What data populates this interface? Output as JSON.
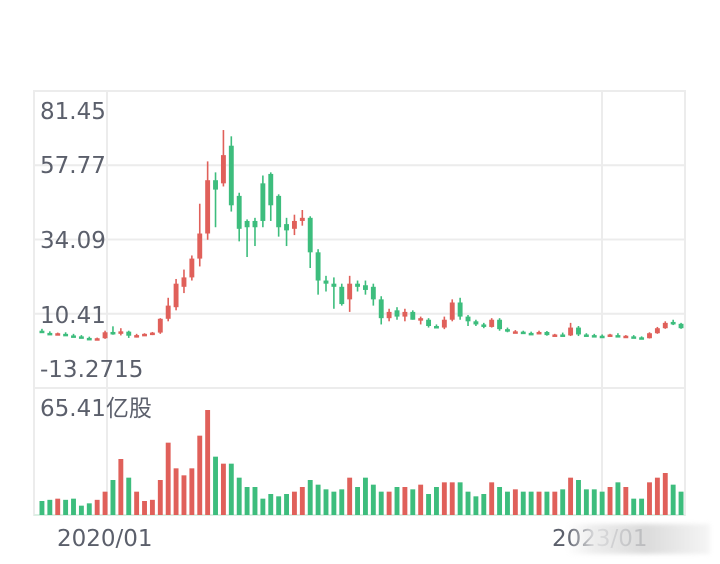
{
  "chart_data": {
    "type": "candlestick",
    "title": "",
    "price_axis": {
      "tick_labels": [
        "81.45",
        "57.77",
        "34.09",
        "10.41",
        "-13.2715"
      ],
      "tick_values": [
        81.45,
        57.77,
        34.09,
        10.41,
        -13.2715
      ],
      "ylim": [
        -13.2715,
        81.45
      ]
    },
    "volume_axis": {
      "max_label": "65.41亿股",
      "max_value": 65.41,
      "unit": "亿股"
    },
    "x_axis": {
      "tick_labels": [
        "2020/01",
        "2023/01"
      ],
      "note": "second label partially obscured by watermark"
    },
    "colors": {
      "up": "#e0605a",
      "down": "#3dbd7d",
      "grid": "#ececec",
      "text": "#5b5f6b"
    },
    "grid": true,
    "candles": [
      {
        "o": 5.0,
        "h": 5.6,
        "l": 4.4,
        "c": 4.6,
        "v": 6
      },
      {
        "o": 4.3,
        "h": 4.8,
        "l": 3.8,
        "c": 4.0,
        "v": 6.5
      },
      {
        "o": 3.9,
        "h": 4.4,
        "l": 3.5,
        "c": 4.2,
        "v": 7
      },
      {
        "o": 4.0,
        "h": 4.5,
        "l": 3.4,
        "c": 3.6,
        "v": 6.5
      },
      {
        "o": 3.5,
        "h": 4.0,
        "l": 3.0,
        "c": 3.3,
        "v": 7
      },
      {
        "o": 3.2,
        "h": 3.6,
        "l": 2.5,
        "c": 2.8,
        "v": 4
      },
      {
        "o": 2.7,
        "h": 3.1,
        "l": 2.2,
        "c": 2.3,
        "v": 5
      },
      {
        "o": 2.2,
        "h": 2.8,
        "l": 1.9,
        "c": 2.6,
        "v": 6.5
      },
      {
        "o": 2.6,
        "h": 5.0,
        "l": 2.4,
        "c": 4.5,
        "v": 10
      },
      {
        "o": 4.6,
        "h": 6.4,
        "l": 3.7,
        "c": 4.4,
        "v": 15
      },
      {
        "o": 4.4,
        "h": 5.8,
        "l": 3.5,
        "c": 4.8,
        "v": 24
      },
      {
        "o": 4.7,
        "h": 5.0,
        "l": 2.7,
        "c": 3.4,
        "v": 16
      },
      {
        "o": 3.3,
        "h": 4.0,
        "l": 2.8,
        "c": 3.6,
        "v": 10
      },
      {
        "o": 3.6,
        "h": 4.2,
        "l": 3.3,
        "c": 4.0,
        "v": 6
      },
      {
        "o": 3.9,
        "h": 4.6,
        "l": 3.6,
        "c": 4.4,
        "v": 6.5
      },
      {
        "o": 4.4,
        "h": 9.0,
        "l": 4.0,
        "c": 8.8,
        "v": 15
      },
      {
        "o": 8.8,
        "h": 15.5,
        "l": 8.0,
        "c": 13.0,
        "v": 31
      },
      {
        "o": 12.5,
        "h": 21.5,
        "l": 11.5,
        "c": 20.0,
        "v": 20
      },
      {
        "o": 19.0,
        "h": 24.5,
        "l": 17.0,
        "c": 22.0,
        "v": 17
      },
      {
        "o": 22.0,
        "h": 29.0,
        "l": 21.0,
        "c": 28.0,
        "v": 20
      },
      {
        "o": 28.0,
        "h": 45.5,
        "l": 25.5,
        "c": 36.0,
        "v": 34
      },
      {
        "o": 36.0,
        "h": 59.0,
        "l": 34.0,
        "c": 53.0,
        "v": 45
      },
      {
        "o": 53.0,
        "h": 55.5,
        "l": 38.0,
        "c": 50.0,
        "v": 25
      },
      {
        "o": 52.0,
        "h": 69.0,
        "l": 51.0,
        "c": 61.0,
        "v": 22
      },
      {
        "o": 64.0,
        "h": 67.0,
        "l": 43.0,
        "c": 45.0,
        "v": 22
      },
      {
        "o": 48.0,
        "h": 49.0,
        "l": 33.5,
        "c": 37.5,
        "v": 16
      },
      {
        "o": 40.0,
        "h": 40.5,
        "l": 28.5,
        "c": 38.0,
        "v": 12
      },
      {
        "o": 40.0,
        "h": 41.0,
        "l": 32.0,
        "c": 38.0,
        "v": 12
      },
      {
        "o": 52.0,
        "h": 54.5,
        "l": 38.0,
        "c": 40.0,
        "v": 7
      },
      {
        "o": 55.0,
        "h": 55.5,
        "l": 40.0,
        "c": 45.0,
        "v": 9
      },
      {
        "o": 48.0,
        "h": 48.5,
        "l": 35.0,
        "c": 38.0,
        "v": 8
      },
      {
        "o": 39.0,
        "h": 41.0,
        "l": 32.0,
        "c": 37.0,
        "v": 9
      },
      {
        "o": 37.5,
        "h": 42.0,
        "l": 35.5,
        "c": 40.0,
        "v": 10
      },
      {
        "o": 40.0,
        "h": 43.5,
        "l": 38.5,
        "c": 41.0,
        "v": 12
      },
      {
        "o": 41.0,
        "h": 41.5,
        "l": 25.0,
        "c": 30.0,
        "v": 15
      },
      {
        "o": 30.0,
        "h": 31.0,
        "l": 16.5,
        "c": 21.0,
        "v": 13
      },
      {
        "o": 21.0,
        "h": 22.5,
        "l": 17.5,
        "c": 20.0,
        "v": 11
      },
      {
        "o": 20.0,
        "h": 22.0,
        "l": 12.0,
        "c": 19.0,
        "v": 10
      },
      {
        "o": 19.0,
        "h": 20.0,
        "l": 13.0,
        "c": 13.5,
        "v": 11
      },
      {
        "o": 15.0,
        "h": 22.5,
        "l": 11.0,
        "c": 20.0,
        "v": 16
      },
      {
        "o": 20.0,
        "h": 21.0,
        "l": 17.5,
        "c": 19.0,
        "v": 12
      },
      {
        "o": 19.5,
        "h": 21.0,
        "l": 16.5,
        "c": 18.0,
        "v": 16
      },
      {
        "o": 19.0,
        "h": 20.0,
        "l": 13.0,
        "c": 15.0,
        "v": 13
      },
      {
        "o": 15.0,
        "h": 16.0,
        "l": 7.0,
        "c": 9.0,
        "v": 10
      },
      {
        "o": 9.0,
        "h": 12.0,
        "l": 8.0,
        "c": 11.0,
        "v": 10
      },
      {
        "o": 11.5,
        "h": 12.5,
        "l": 8.5,
        "c": 9.5,
        "v": 12
      },
      {
        "o": 9.5,
        "h": 12.0,
        "l": 8.0,
        "c": 11.0,
        "v": 12
      },
      {
        "o": 11.0,
        "h": 11.5,
        "l": 8.5,
        "c": 8.5,
        "v": 11
      },
      {
        "o": 8.5,
        "h": 9.5,
        "l": 7.0,
        "c": 9.0,
        "v": 13
      },
      {
        "o": 8.5,
        "h": 9.0,
        "l": 6.0,
        "c": 6.5,
        "v": 9
      },
      {
        "o": 6.5,
        "h": 7.0,
        "l": 5.8,
        "c": 6.2,
        "v": 12
      },
      {
        "o": 6.0,
        "h": 9.5,
        "l": 5.5,
        "c": 8.5,
        "v": 14
      },
      {
        "o": 8.5,
        "h": 15.0,
        "l": 8.0,
        "c": 14.0,
        "v": 14
      },
      {
        "o": 14.0,
        "h": 15.5,
        "l": 8.5,
        "c": 9.5,
        "v": 14
      },
      {
        "o": 9.5,
        "h": 10.0,
        "l": 6.5,
        "c": 8.0,
        "v": 10
      },
      {
        "o": 8.0,
        "h": 8.5,
        "l": 6.5,
        "c": 7.0,
        "v": 8
      },
      {
        "o": 7.0,
        "h": 7.5,
        "l": 5.8,
        "c": 6.2,
        "v": 9
      },
      {
        "o": 6.2,
        "h": 9.0,
        "l": 6.0,
        "c": 8.5,
        "v": 14
      },
      {
        "o": 8.5,
        "h": 9.0,
        "l": 5.0,
        "c": 5.5,
        "v": 12
      },
      {
        "o": 5.5,
        "h": 6.0,
        "l": 4.5,
        "c": 4.7,
        "v": 10
      },
      {
        "o": 4.7,
        "h": 5.2,
        "l": 4.3,
        "c": 4.8,
        "v": 11
      },
      {
        "o": 4.7,
        "h": 5.0,
        "l": 4.2,
        "c": 4.5,
        "v": 10
      },
      {
        "o": 4.3,
        "h": 4.7,
        "l": 3.8,
        "c": 4.1,
        "v": 10
      },
      {
        "o": 4.1,
        "h": 5.0,
        "l": 3.9,
        "c": 4.6,
        "v": 10
      },
      {
        "o": 4.6,
        "h": 4.9,
        "l": 3.4,
        "c": 3.6,
        "v": 10
      },
      {
        "o": 3.6,
        "h": 4.0,
        "l": 3.2,
        "c": 3.8,
        "v": 10
      },
      {
        "o": 3.8,
        "h": 4.4,
        "l": 3.3,
        "c": 3.5,
        "v": 11
      },
      {
        "o": 3.5,
        "h": 7.5,
        "l": 3.3,
        "c": 6.0,
        "v": 16
      },
      {
        "o": 6.0,
        "h": 6.5,
        "l": 3.3,
        "c": 3.8,
        "v": 15
      },
      {
        "o": 3.8,
        "h": 4.2,
        "l": 3.3,
        "c": 3.6,
        "v": 11
      },
      {
        "o": 3.6,
        "h": 4.0,
        "l": 3.2,
        "c": 3.4,
        "v": 11
      },
      {
        "o": 3.4,
        "h": 3.8,
        "l": 3.0,
        "c": 3.2,
        "v": 10
      },
      {
        "o": 3.2,
        "h": 4.0,
        "l": 3.0,
        "c": 3.8,
        "v": 12
      },
      {
        "o": 3.6,
        "h": 4.2,
        "l": 3.0,
        "c": 3.3,
        "v": 14
      },
      {
        "o": 3.1,
        "h": 3.6,
        "l": 2.8,
        "c": 3.4,
        "v": 12
      },
      {
        "o": 3.2,
        "h": 3.6,
        "l": 2.7,
        "c": 2.9,
        "v": 7
      },
      {
        "o": 2.9,
        "h": 3.2,
        "l": 2.4,
        "c": 2.6,
        "v": 7
      },
      {
        "o": 2.6,
        "h": 4.5,
        "l": 2.5,
        "c": 4.2,
        "v": 14
      },
      {
        "o": 4.2,
        "h": 6.2,
        "l": 4.0,
        "c": 5.8,
        "v": 16
      },
      {
        "o": 5.8,
        "h": 8.0,
        "l": 5.6,
        "c": 7.5,
        "v": 18
      },
      {
        "o": 7.8,
        "h": 8.5,
        "l": 6.8,
        "c": 7.2,
        "v": 13
      },
      {
        "o": 7.2,
        "h": 7.5,
        "l": 5.6,
        "c": 5.8,
        "v": 10
      }
    ]
  },
  "watermark": {
    "visible": true,
    "description": "obscured overlay bottom right"
  }
}
